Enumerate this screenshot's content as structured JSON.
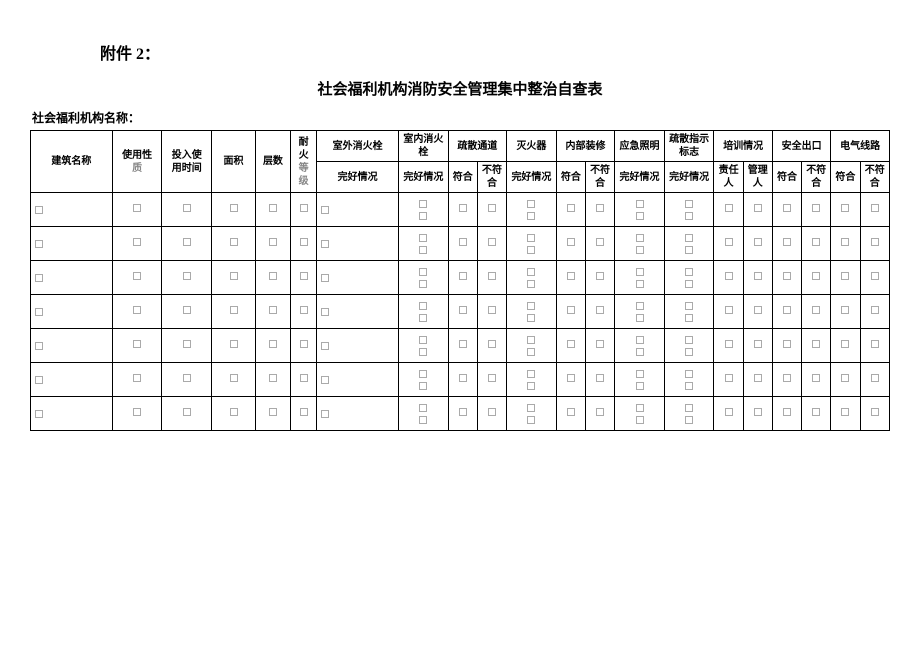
{
  "attachment_label": "附件 2：",
  "title": "社会福利机构消防安全管理集中整治自查表",
  "org_label": "社会福利机构名称：",
  "headers": {
    "building_name": "建筑名称",
    "use_nature_a": "使用性",
    "use_nature_b": "质",
    "put_use_a": "投入使",
    "put_use_b": "用时间",
    "area": "面积",
    "floors": "层数",
    "fire_a": "耐",
    "fire_b": "火",
    "fire_c": "等",
    "fire_d": "级",
    "outdoor": "室外消火栓",
    "indoor": "室内消火栓",
    "evac_passage": "疏散通道",
    "extinguisher": "灭火器",
    "interior": "内部装修",
    "emerg_light": "应急照明",
    "evac_sign": "疏散指示标志",
    "training": "培训情况",
    "safety_exit": "安全出口",
    "elec": "电气线路",
    "good": "完好情况",
    "conform": "符合",
    "not_conform": "不符合",
    "resp": "责任人",
    "mgr": "管理人"
  },
  "widths": {
    "building": 56,
    "use": 34,
    "putuse": 34,
    "area": 30,
    "floors": 24,
    "fire": 18,
    "outdoor": 56,
    "indoor": 34,
    "evac_c": 20,
    "evac_nc": 20,
    "ext": 34,
    "int_c": 20,
    "int_nc": 20,
    "emerg": 34,
    "sign": 34,
    "train_a": 20,
    "train_b": 20,
    "se_c": 20,
    "se_nc": 20,
    "el_c": 20,
    "el_nc": 20
  },
  "row_count": 7,
  "colors": {
    "border": "#000000",
    "bg": "#ffffff",
    "gray": "#888888"
  },
  "font_sizes": {
    "attachment": 16,
    "title": 15,
    "org": 12,
    "cell": 10
  }
}
